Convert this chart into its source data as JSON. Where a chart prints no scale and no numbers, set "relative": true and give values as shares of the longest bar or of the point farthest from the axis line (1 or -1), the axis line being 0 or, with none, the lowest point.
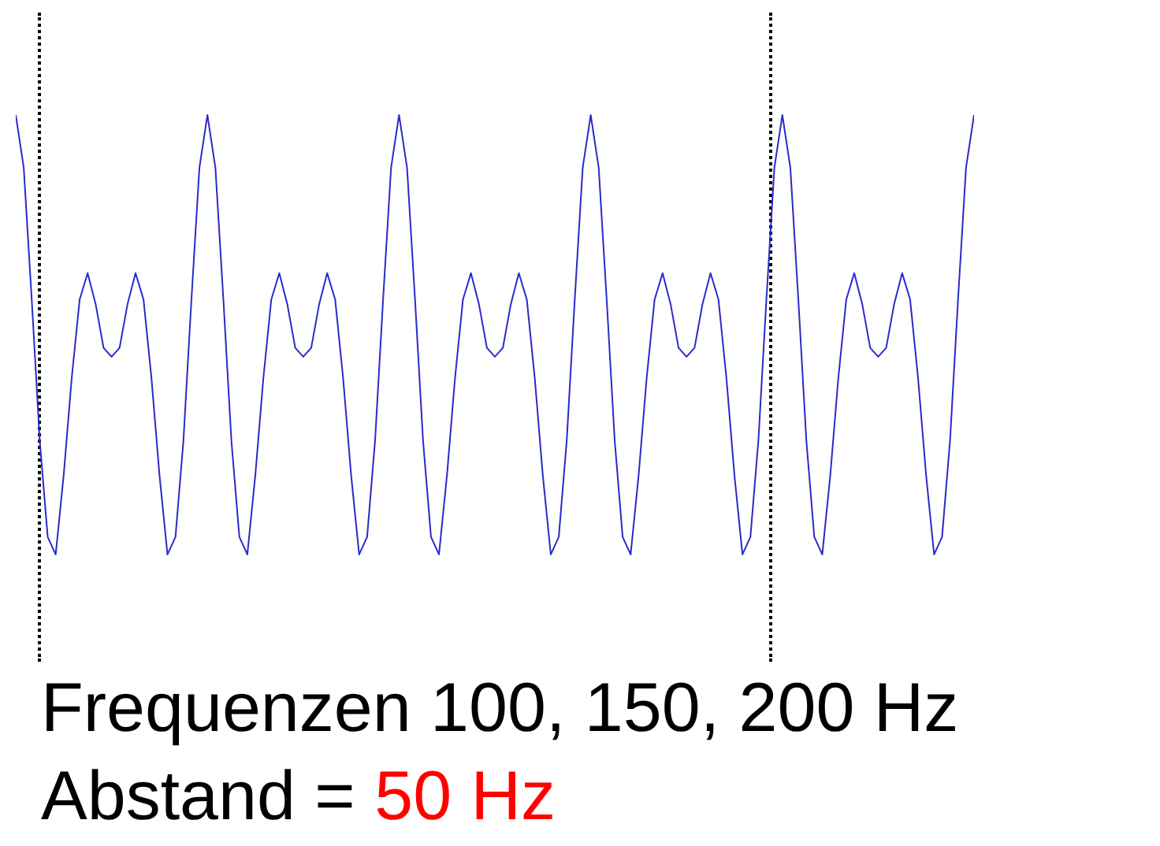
{
  "chart_data": {
    "type": "line",
    "relative": true,
    "categories": [
      null,
      null,
      null,
      null,
      null,
      null,
      null,
      null,
      null,
      null,
      null,
      null,
      null,
      null,
      null,
      null,
      null,
      null,
      null,
      null,
      null,
      null,
      null,
      null,
      null,
      null,
      null,
      null,
      null,
      null,
      null,
      null,
      null,
      null,
      null,
      null,
      null,
      null,
      null,
      null,
      null,
      null,
      null,
      null,
      null,
      null,
      null,
      null,
      null,
      null,
      null,
      null,
      null,
      null,
      null,
      null,
      null,
      null,
      null,
      null,
      null,
      null,
      null,
      null,
      null,
      null,
      null,
      null,
      null,
      null,
      null,
      null,
      null,
      null,
      null,
      null,
      null,
      null,
      null,
      null,
      null,
      null,
      null,
      null,
      null,
      null,
      null,
      null,
      null,
      null,
      null,
      null,
      null,
      null,
      null,
      null,
      null,
      null,
      null,
      null,
      null,
      null,
      null,
      null,
      null,
      null,
      null,
      null,
      null,
      null,
      null,
      null,
      null,
      null,
      null,
      null,
      null,
      null,
      null,
      null,
      null
    ],
    "series": [
      {
        "color": "#2a2acc",
        "values": [
          1,
          0.88,
          0.58,
          0.26,
          0.04,
          0,
          0.18,
          0.4,
          0.58,
          0.64,
          0.57,
          0.47,
          0.45,
          0.47,
          0.57,
          0.64,
          0.58,
          0.4,
          0.18,
          0,
          0.04,
          0.26,
          0.58,
          0.88,
          1,
          0.88,
          0.58,
          0.26,
          0.04,
          0,
          0.18,
          0.4,
          0.58,
          0.64,
          0.57,
          0.47,
          0.45,
          0.47,
          0.57,
          0.64,
          0.58,
          0.4,
          0.18,
          0,
          0.04,
          0.26,
          0.58,
          0.88,
          1,
          0.88,
          0.58,
          0.26,
          0.04,
          0,
          0.18,
          0.4,
          0.58,
          0.64,
          0.57,
          0.47,
          0.45,
          0.47,
          0.57,
          0.64,
          0.58,
          0.4,
          0.18,
          0,
          0.04,
          0.26,
          0.58,
          0.88,
          1,
          0.88,
          0.58,
          0.26,
          0.04,
          0,
          0.18,
          0.4,
          0.58,
          0.64,
          0.57,
          0.47,
          0.45,
          0.47,
          0.57,
          0.64,
          0.58,
          0.4,
          0.18,
          0,
          0.04,
          0.26,
          0.58,
          0.88,
          1,
          0.88,
          0.58,
          0.26,
          0.04,
          0,
          0.18,
          0.4,
          0.58,
          0.64,
          0.57,
          0.47,
          0.45,
          0.47,
          0.57,
          0.64,
          0.58,
          0.4,
          0.18,
          0,
          0.04,
          0.26,
          0.58,
          0.88,
          1
        ]
      }
    ],
    "annotations": [
      "Frequenzen 100, 150, 200 Hz",
      "Abstand =",
      "50 Hz"
    ]
  }
}
